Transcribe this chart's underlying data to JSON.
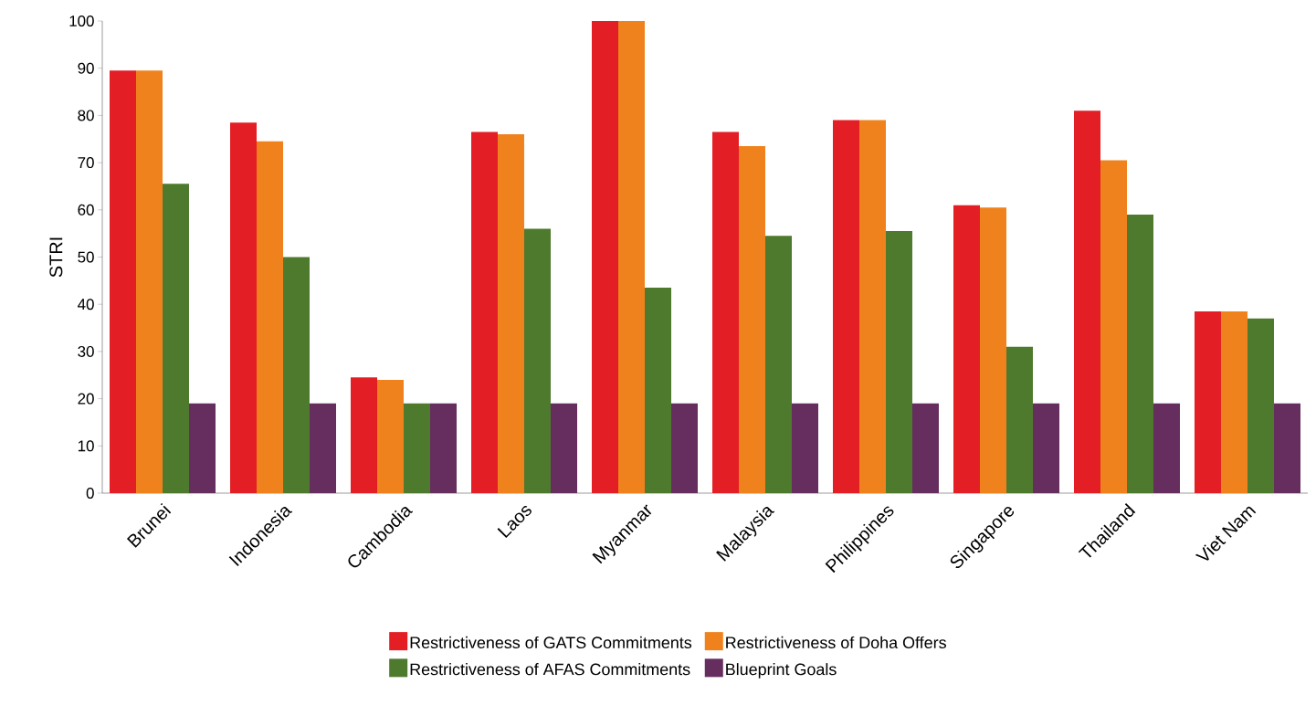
{
  "chart_data": {
    "type": "bar",
    "ylabel": "STRI",
    "categories": [
      "Brunei",
      "Indonesia",
      "Cambodia",
      "Laos",
      "Myanmar",
      "Malaysia",
      "Philippines",
      "Singapore",
      "Thailand",
      "Viet Nam"
    ],
    "series": [
      {
        "name": "Restrictiveness of GATS Commitments",
        "color": "#e31e24",
        "values": [
          89.5,
          78.5,
          24.5,
          76.5,
          100,
          76.5,
          79,
          61,
          81,
          38.5
        ]
      },
      {
        "name": "Restrictiveness of Doha Offers",
        "color": "#f0821e",
        "values": [
          89.5,
          74.5,
          24,
          76,
          100,
          73.5,
          79,
          60.5,
          70.5,
          38.5
        ]
      },
      {
        "name": "Restrictiveness of AFAS Commitments",
        "color": "#4e7a2e",
        "values": [
          65.5,
          50,
          19,
          56,
          43.5,
          54.5,
          55.5,
          31,
          59,
          37
        ]
      },
      {
        "name": "Blueprint Goals",
        "color": "#662d5f",
        "values": [
          19,
          19,
          19,
          19,
          19,
          19,
          19,
          19,
          19,
          19
        ]
      }
    ],
    "ylim": [
      0,
      100
    ],
    "yticks": [
      0,
      10,
      20,
      30,
      40,
      50,
      60,
      70,
      80,
      90,
      100
    ],
    "legend": "bottom"
  }
}
